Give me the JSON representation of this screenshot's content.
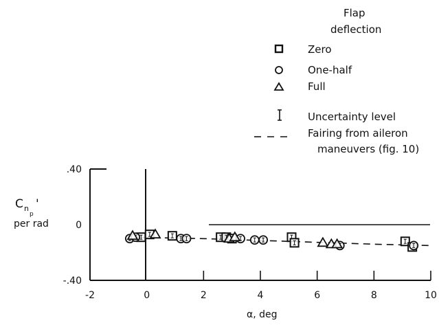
{
  "legend": {
    "title_line1": "Flap",
    "title_line2": "deflection",
    "items": [
      {
        "label": "Zero",
        "marker": "square"
      },
      {
        "label": "One-half",
        "marker": "circle"
      },
      {
        "label": "Full",
        "marker": "triangle"
      },
      {
        "label": "Uncertainty level",
        "marker": "error-bar"
      },
      {
        "label": "Fairing from aileron",
        "label_line2": "maneuvers (fig. 10)",
        "marker": "dashed-line"
      }
    ]
  },
  "axes": {
    "ylabel_main": "C",
    "ylabel_sub": "n",
    "ylabel_subsub": "p",
    "ylabel_prime": "'",
    "ylabel_units": "per rad",
    "xlabel": "α, deg"
  },
  "chart_data": {
    "type": "scatter",
    "xlabel": "α, deg",
    "ylabel": "Cnp', per rad",
    "xlim": [
      -2,
      10
    ],
    "ylim": [
      -0.4,
      0.4
    ],
    "xticks": [
      -2,
      0,
      2,
      4,
      6,
      8,
      10
    ],
    "xtick_labels": [
      "-2",
      "0",
      "2",
      "4",
      "6",
      "8",
      "10"
    ],
    "yticks": [
      -0.4,
      0,
      0.4
    ],
    "ytick_labels": [
      "-.40",
      "0",
      ".40"
    ],
    "grid": false,
    "legend_position": "top-right",
    "series": [
      {
        "name": "Zero",
        "marker": "square",
        "x": [
          -0.2,
          0.1,
          0.9,
          2.6,
          2.8,
          3.0,
          5.1,
          5.2,
          9.1,
          9.35
        ],
        "y": [
          -0.09,
          -0.07,
          -0.08,
          -0.09,
          -0.09,
          -0.1,
          -0.09,
          -0.13,
          -0.12,
          -0.16
        ]
      },
      {
        "name": "One-half",
        "marker": "circle",
        "x": [
          -0.6,
          -0.4,
          1.2,
          1.4,
          3.3,
          3.8,
          4.1,
          6.8,
          9.4
        ],
        "y": [
          -0.1,
          -0.09,
          -0.1,
          -0.1,
          -0.1,
          -0.11,
          -0.11,
          -0.15,
          -0.15
        ]
      },
      {
        "name": "Full",
        "marker": "triangle",
        "x": [
          -0.5,
          0.3,
          2.9,
          3.1,
          6.2,
          6.5,
          6.7
        ],
        "y": [
          -0.08,
          -0.07,
          -0.1,
          -0.09,
          -0.13,
          -0.14,
          -0.14
        ]
      },
      {
        "name": "Fairing from aileron maneuvers (fig. 10)",
        "style": "dashed",
        "x": [
          -0.6,
          2.0,
          5.0,
          8.0,
          10.0
        ],
        "y": [
          -0.09,
          -0.1,
          -0.12,
          -0.14,
          -0.15
        ]
      }
    ]
  }
}
